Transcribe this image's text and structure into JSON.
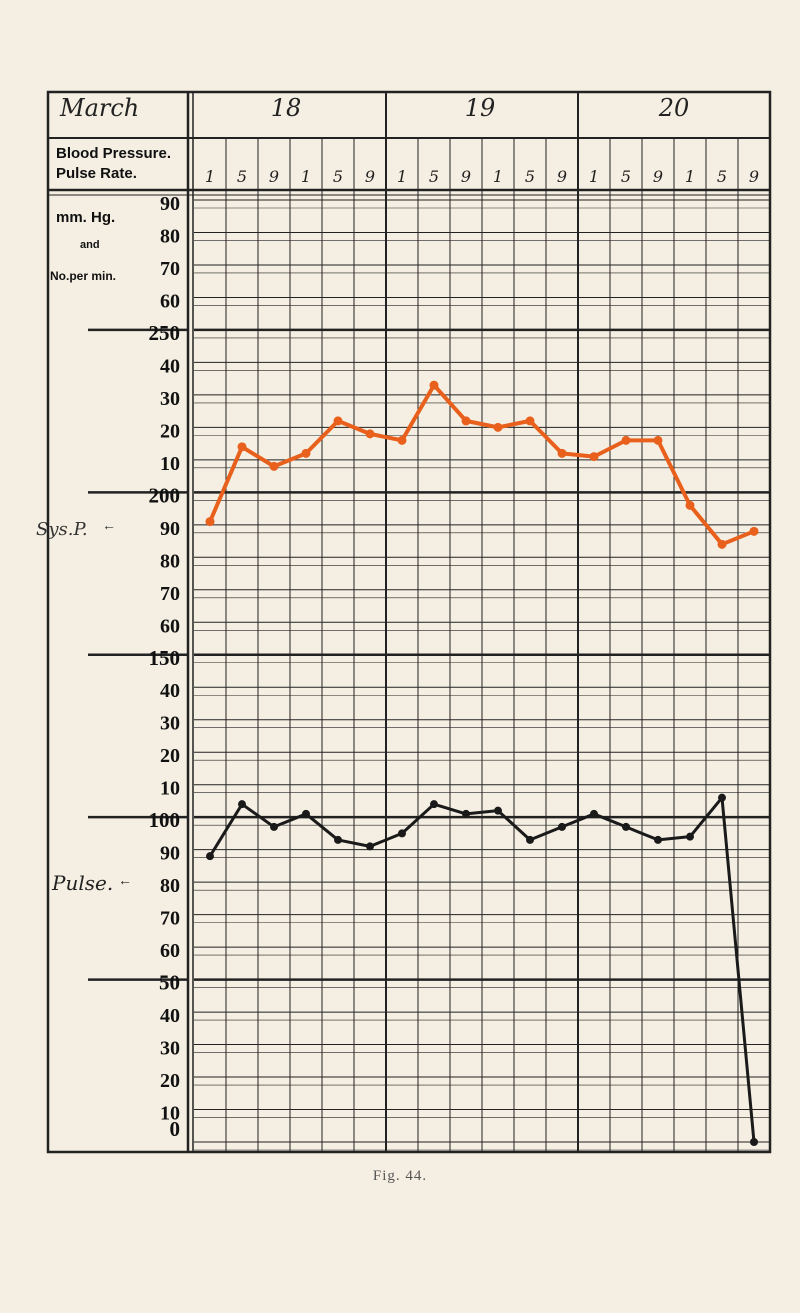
{
  "header": {
    "month": "March",
    "days": [
      "18",
      "19",
      "20"
    ],
    "row_label_line1": "Blood Pressure.",
    "row_label_line2": "Pulse Rate."
  },
  "left_labels": {
    "units_line1": "mm. Hg.",
    "units_line2": "and",
    "units_line3": "No.per min.",
    "bp_marker": "Sys.P.",
    "pulse_marker": "Pulse."
  },
  "caption": "Fig. 44.",
  "colors": {
    "bp": "#e8601c",
    "pulse": "#1a1a1a",
    "grid": "#222222",
    "paper": "#f4efe2"
  },
  "chart_data": {
    "type": "line",
    "title": "",
    "xlabel": "",
    "ylabel": "mm. Hg. and No. per min.",
    "time_ticks": [
      "1",
      "5",
      "9",
      "1",
      "5",
      "9",
      "1",
      "5",
      "9",
      "1",
      "5",
      "9",
      "1",
      "5",
      "9",
      "1",
      "5",
      "9"
    ],
    "y_scale_labels": [
      "90",
      "80",
      "70",
      "60",
      "250",
      "40",
      "30",
      "20",
      "10",
      "200",
      "90",
      "80",
      "70",
      "60",
      "150",
      "40",
      "30",
      "20",
      "10",
      "100",
      "90",
      "80",
      "70",
      "60",
      "50",
      "40",
      "30",
      "20",
      "10",
      "0"
    ],
    "ylim": [
      0,
      290
    ],
    "grid": true,
    "series": [
      {
        "name": "Sys. P.",
        "color": "#e8601c",
        "values": [
          191,
          214,
          208,
          212,
          222,
          218,
          216,
          233,
          222,
          220,
          222,
          212,
          211,
          216,
          216,
          196,
          184,
          188
        ]
      },
      {
        "name": "Pulse",
        "color": "#1a1a1a",
        "values": [
          88,
          104,
          97,
          101,
          93,
          91,
          95,
          104,
          101,
          102,
          93,
          97,
          101,
          97,
          93,
          94,
          106,
          0
        ]
      }
    ]
  }
}
